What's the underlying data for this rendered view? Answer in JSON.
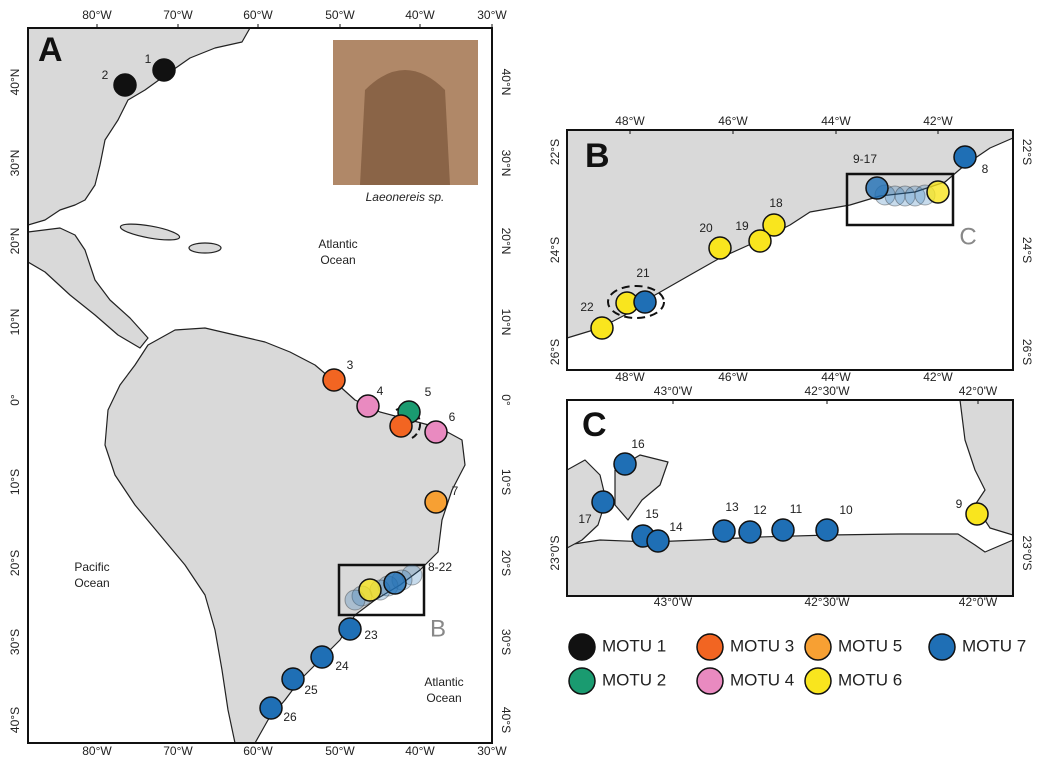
{
  "panel_a": {
    "label": "A",
    "lon_ticks": [
      "80°W",
      "70°W",
      "60°W",
      "50°W",
      "40°W",
      "30°W"
    ],
    "lat_ticks": [
      "40°N",
      "30°N",
      "20°N",
      "10°N",
      "0°",
      "10°S",
      "20°S",
      "30°S",
      "40°S"
    ],
    "inset_caption": "Laeonereis sp.",
    "oceans": [
      {
        "lines": [
          "Atlantic",
          "Ocean"
        ]
      },
      {
        "lines": [
          "Pacific",
          "Ocean"
        ]
      },
      {
        "lines": [
          "Atlantic",
          "Ocean"
        ]
      }
    ],
    "box_label": "B",
    "sites": [
      {
        "label": "1",
        "motus": [
          "MOTU 1"
        ]
      },
      {
        "label": "2",
        "motus": [
          "MOTU 1"
        ]
      },
      {
        "label": "3",
        "motus": [
          "MOTU 3"
        ]
      },
      {
        "label": "4",
        "motus": [
          "MOTU 4"
        ]
      },
      {
        "label": "5",
        "motus": [
          "MOTU 2",
          "MOTU 3"
        ]
      },
      {
        "label": "6",
        "motus": [
          "MOTU 4"
        ]
      },
      {
        "label": "7",
        "motus": [
          "MOTU 5"
        ]
      },
      {
        "label": "8-22",
        "motus": [
          "MOTU 7",
          "MOTU 6"
        ]
      },
      {
        "label": "23",
        "motus": [
          "MOTU 7"
        ]
      },
      {
        "label": "24",
        "motus": [
          "MOTU 7"
        ]
      },
      {
        "label": "25",
        "motus": [
          "MOTU 7"
        ]
      },
      {
        "label": "26",
        "motus": [
          "MOTU 7"
        ]
      }
    ]
  },
  "panel_b": {
    "label": "B",
    "lon_ticks": [
      "48°W",
      "46°W",
      "44°W",
      "42°W"
    ],
    "lat_ticks": [
      "22°S",
      "24°S",
      "26°S"
    ],
    "box_label": "C",
    "sites": [
      {
        "label": "8",
        "motus": [
          "MOTU 7"
        ]
      },
      {
        "label": "9-17",
        "motus": [
          "MOTU 7",
          "MOTU 6"
        ]
      },
      {
        "label": "18",
        "motus": [
          "MOTU 6"
        ]
      },
      {
        "label": "19",
        "motus": [
          "MOTU 6"
        ]
      },
      {
        "label": "20",
        "motus": [
          "MOTU 6"
        ]
      },
      {
        "label": "21",
        "motus": [
          "MOTU 6",
          "MOTU 7"
        ]
      },
      {
        "label": "22",
        "motus": [
          "MOTU 6"
        ]
      }
    ]
  },
  "panel_c": {
    "label": "C",
    "lon_ticks": [
      "43°0'W",
      "42°30'W",
      "42°0'W"
    ],
    "lat_ticks": [
      "23°0'S"
    ],
    "sites": [
      {
        "label": "16",
        "motus": [
          "MOTU 7"
        ]
      },
      {
        "label": "17",
        "motus": [
          "MOTU 7"
        ]
      },
      {
        "label": "15",
        "motus": [
          "MOTU 7"
        ]
      },
      {
        "label": "14",
        "motus": [
          "MOTU 7"
        ]
      },
      {
        "label": "13",
        "motus": [
          "MOTU 7"
        ]
      },
      {
        "label": "12",
        "motus": [
          "MOTU 7"
        ]
      },
      {
        "label": "11",
        "motus": [
          "MOTU 7"
        ]
      },
      {
        "label": "10",
        "motus": [
          "MOTU 7"
        ]
      },
      {
        "label": "9",
        "motus": [
          "MOTU 6"
        ]
      }
    ]
  },
  "legend": [
    {
      "label": "MOTU 1",
      "color": "#111111"
    },
    {
      "label": "MOTU 3",
      "color": "#f26522"
    },
    {
      "label": "MOTU 5",
      "color": "#f7a033"
    },
    {
      "label": "MOTU 7",
      "color": "#1f6fb5"
    },
    {
      "label": "MOTU 2",
      "color": "#1a9b70"
    },
    {
      "label": "MOTU 4",
      "color": "#e98ac0"
    },
    {
      "label": "MOTU 6",
      "color": "#f9e51e"
    }
  ]
}
